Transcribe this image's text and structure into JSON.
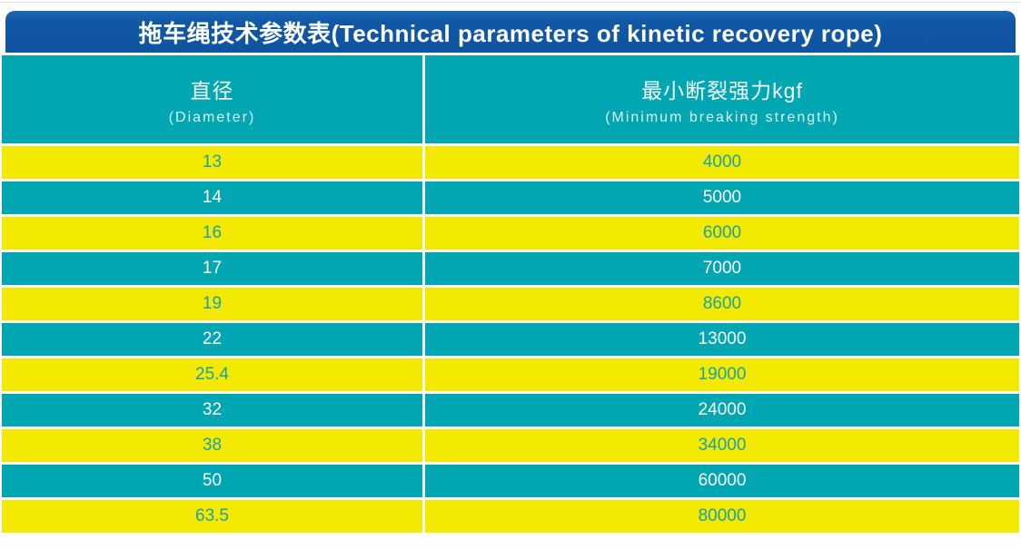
{
  "title": "拖车绳技术参数表(Technical parameters of kinetic recovery rope)",
  "header": {
    "diameter_zh": "直径",
    "diameter_en": "(Diameter)",
    "strength_zh": "最小断裂强力kgf",
    "strength_en": "(Minimum breaking strength)"
  },
  "chart_data": {
    "type": "table",
    "title": "拖车绳技术参数表(Technical parameters of kinetic recovery rope)",
    "columns": [
      "直径 (Diameter)",
      "最小断裂强力kgf (Minimum breaking strength)"
    ],
    "rows": [
      [
        "13",
        "4000"
      ],
      [
        "14",
        "5000"
      ],
      [
        "16",
        "6000"
      ],
      [
        "17",
        "7000"
      ],
      [
        "19",
        "8600"
      ],
      [
        "22",
        "13000"
      ],
      [
        "25.4",
        "19000"
      ],
      [
        "32",
        "24000"
      ],
      [
        "38",
        "34000"
      ],
      [
        "50",
        "60000"
      ],
      [
        "63.5",
        "80000"
      ]
    ]
  },
  "colors": {
    "title_bar_blue": "#1057a4",
    "teal": "#00a6b2",
    "yellow": "#f4e900",
    "teal_text_on_yellow": "#19a3a6",
    "white_text": "#ffffff"
  }
}
